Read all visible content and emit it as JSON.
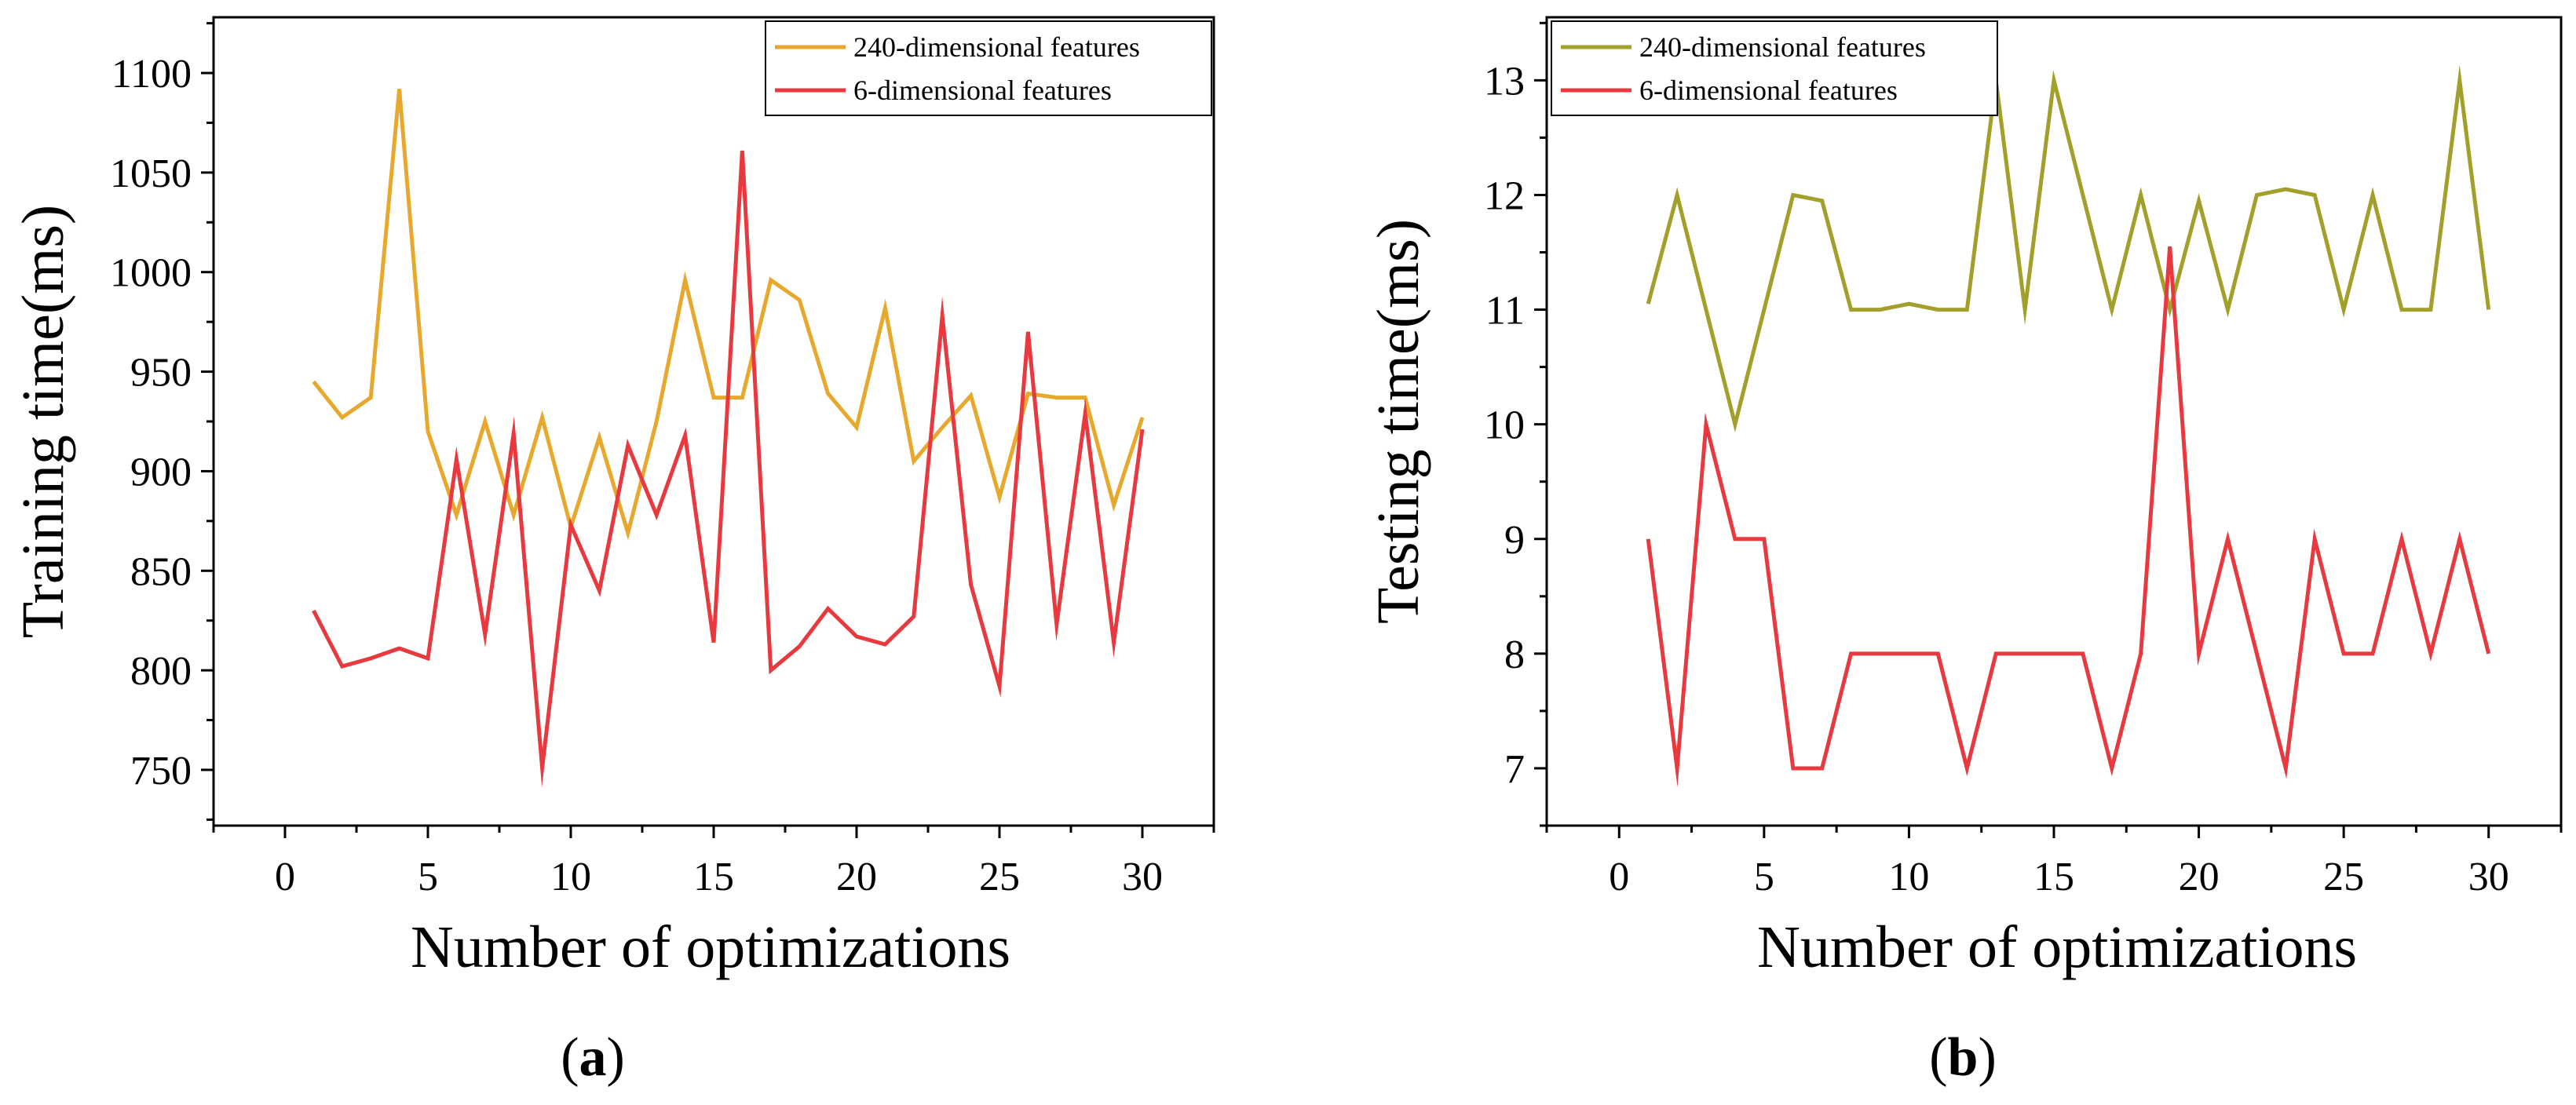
{
  "chart_data": [
    {
      "type": "line",
      "caption": "(a)",
      "caption_letter": "a",
      "xlabel": "Number of optimizations",
      "ylabel": "Training time(ms)",
      "xlim": [
        -2.5,
        32.5
      ],
      "ylim": [
        722,
        1128
      ],
      "x_ticks": [
        0,
        5,
        10,
        15,
        20,
        25,
        30
      ],
      "y_ticks": [
        750,
        800,
        850,
        900,
        950,
        1000,
        1050,
        1100
      ],
      "legend_position": "top-right",
      "x": [
        1,
        2,
        3,
        4,
        5,
        6,
        7,
        8,
        9,
        10,
        11,
        12,
        13,
        14,
        15,
        16,
        17,
        18,
        19,
        20,
        21,
        22,
        23,
        24,
        25,
        26,
        27,
        28,
        29,
        30
      ],
      "series": [
        {
          "name": "240-dimensional features",
          "color": "#E8A82D",
          "values": [
            945,
            927,
            937,
            1092,
            920,
            878,
            925,
            878,
            927,
            872,
            917,
            869,
            925,
            996,
            937,
            937,
            996,
            986,
            939,
            922,
            982,
            905,
            922,
            938,
            887,
            939,
            937,
            937,
            883,
            927
          ]
        },
        {
          "name": "6-dimensional features",
          "color": "#E8393F",
          "values": [
            830,
            802,
            806,
            811,
            806,
            906,
            818,
            919,
            751,
            873,
            840,
            913,
            878,
            918,
            814,
            1061,
            800,
            812,
            831,
            817,
            813,
            827,
            978,
            843,
            792,
            970,
            823,
            929,
            814,
            921
          ]
        }
      ]
    },
    {
      "type": "line",
      "caption": "(b)",
      "caption_letter": "b",
      "xlabel": "Number of optimizations",
      "ylabel": "Testing time(ms)",
      "xlim": [
        -2.5,
        32.5
      ],
      "ylim": [
        6.5,
        13.55
      ],
      "x_ticks": [
        0,
        5,
        10,
        15,
        20,
        25,
        30
      ],
      "y_ticks": [
        7,
        8,
        9,
        10,
        11,
        12,
        13
      ],
      "legend_position": "top-left",
      "x": [
        1,
        2,
        3,
        4,
        5,
        6,
        7,
        8,
        9,
        10,
        11,
        12,
        13,
        14,
        15,
        16,
        17,
        18,
        19,
        20,
        21,
        22,
        23,
        24,
        25,
        26,
        27,
        28,
        29,
        30
      ],
      "series": [
        {
          "name": "240-dimensional features",
          "color": "#A2A02A",
          "values": [
            11.05,
            12,
            11,
            10,
            11,
            12,
            11.95,
            11,
            11,
            11.05,
            11,
            11,
            13,
            11,
            13,
            12,
            11,
            12,
            11,
            11.95,
            11,
            12,
            12.05,
            12,
            11,
            12,
            11,
            11,
            13,
            11
          ]
        },
        {
          "name": "6-dimensional features",
          "color": "#E8393F",
          "values": [
            9,
            7,
            10,
            9,
            9,
            7,
            7,
            8,
            8,
            8,
            8,
            7,
            8,
            8,
            8,
            8,
            7,
            8,
            11.55,
            8,
            9,
            8,
            7,
            9,
            8,
            8,
            9,
            8,
            9,
            8
          ]
        }
      ]
    }
  ]
}
